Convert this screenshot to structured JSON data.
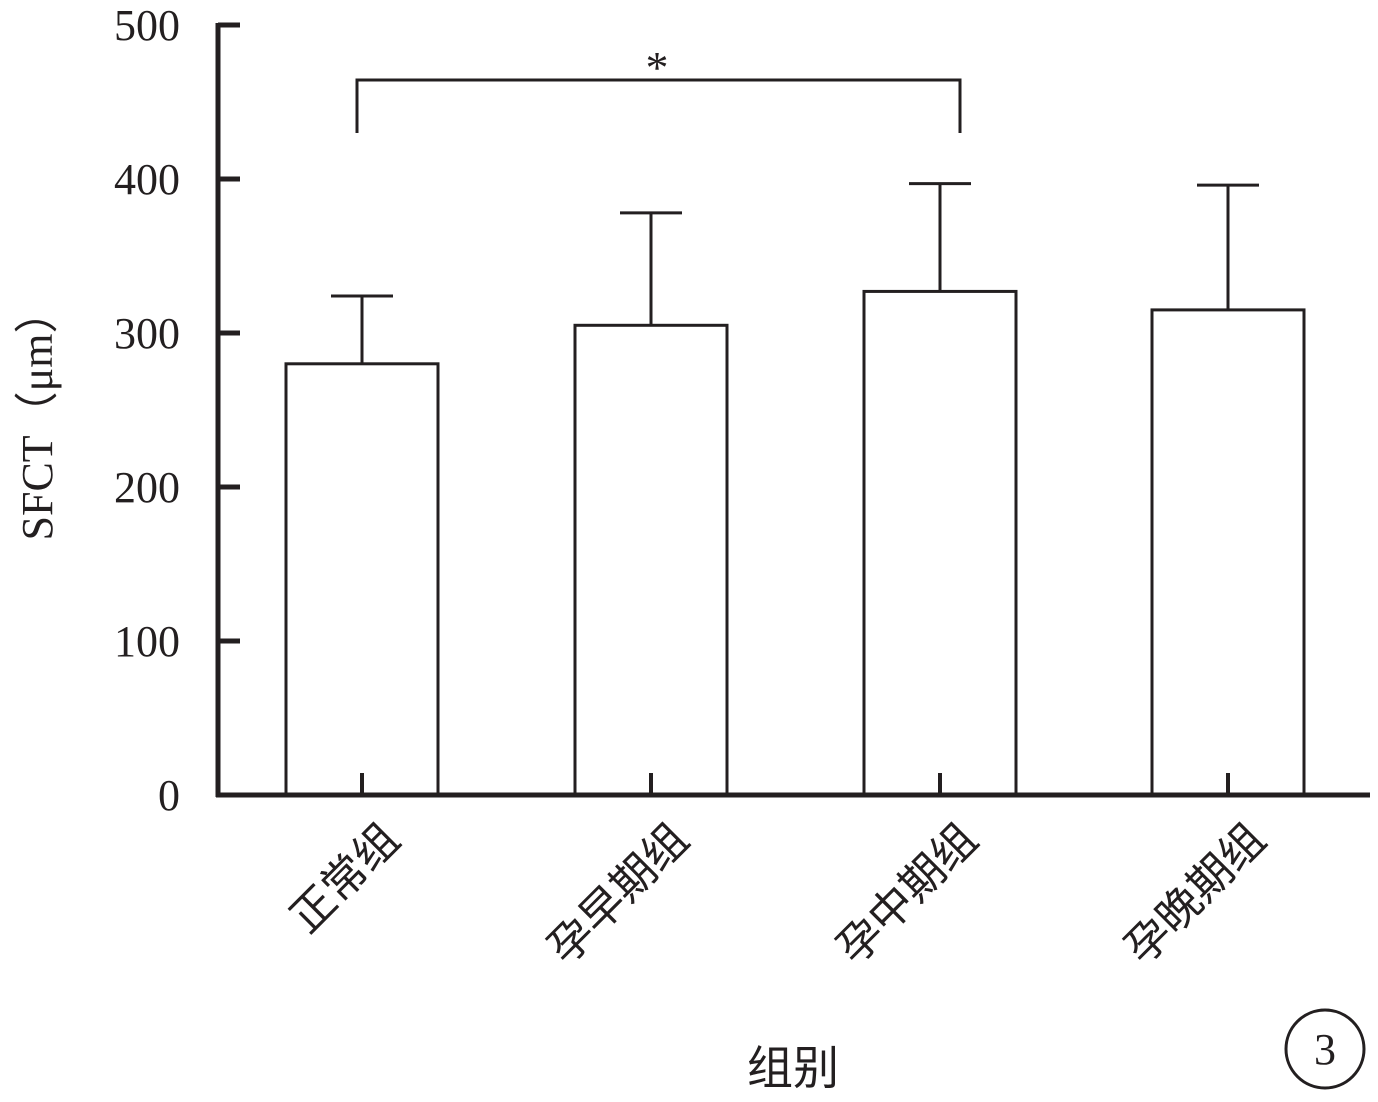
{
  "chart_data": {
    "type": "bar",
    "categories": [
      "正常组",
      "孕早期组",
      "孕中期组",
      "孕晚期组"
    ],
    "values": [
      280,
      305,
      327,
      315
    ],
    "errors": [
      44,
      73,
      70,
      81
    ],
    "ylabel": "SFCT（μm）",
    "xlabel": "组别",
    "ylim": [
      0,
      500
    ],
    "yticks": [
      0,
      100,
      200,
      300,
      400,
      500
    ],
    "grid": false,
    "bar_fill": "#ffffff",
    "stroke_color": "#231f20",
    "significance": {
      "from_index": 0,
      "to_index": 2,
      "label": "*"
    },
    "panel_label": "3"
  }
}
